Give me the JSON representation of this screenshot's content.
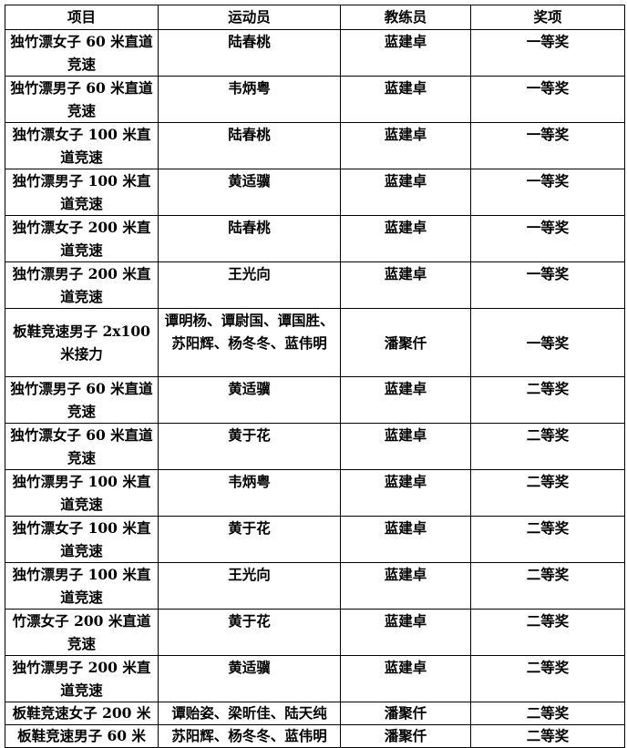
{
  "table": {
    "headers": [
      "项目",
      "运动员",
      "教练员",
      "奖项"
    ],
    "rows": [
      {
        "project": "独竹漂女子 60 米直道竞速",
        "athletes": "陆春桃",
        "coach": "蓝建卓",
        "award": "一等奖"
      },
      {
        "project": "独竹漂男子 60 米直道竞速",
        "athletes": "韦炳粤",
        "coach": "蓝建卓",
        "award": "一等奖"
      },
      {
        "project": "独竹漂女子 100 米直道竞速",
        "athletes": "陆春桃",
        "coach": "蓝建卓",
        "award": "一等奖"
      },
      {
        "project": "独竹漂男子 100 米直道竞速",
        "athletes": "黄适骥",
        "coach": "蓝建卓",
        "award": "一等奖"
      },
      {
        "project": "独竹漂女子 200 米直道竞速",
        "athletes": "陆春桃",
        "coach": "蓝建卓",
        "award": "一等奖"
      },
      {
        "project": "独竹漂男子 200 米直道竞速",
        "athletes": "王光向",
        "coach": "蓝建卓",
        "award": "一等奖"
      },
      {
        "project": "板鞋竞速男子 2x100 米接力",
        "athletes": "谭明杨、谭尉国、谭国胜、苏阳辉、杨冬冬、蓝伟明",
        "coach": "潘聚仟",
        "award": "一等奖"
      },
      {
        "project": "独竹漂男子 60 米直道竞速",
        "athletes": "黄适骥",
        "coach": "蓝建卓",
        "award": "二等奖"
      },
      {
        "project": "独竹漂女子 60 米直道竞速",
        "athletes": "黄于花",
        "coach": "蓝建卓",
        "award": "二等奖"
      },
      {
        "project": "独竹漂男子 100 米直道竞速",
        "athletes": "韦炳粤",
        "coach": "蓝建卓",
        "award": "二等奖"
      },
      {
        "project": "独竹漂女子 100 米直道竞速",
        "athletes": "黄于花",
        "coach": "蓝建卓",
        "award": "二等奖"
      },
      {
        "project": "独竹漂男子 100 米直道竞速",
        "athletes": "王光向",
        "coach": "蓝建卓",
        "award": "二等奖"
      },
      {
        "project": "竹漂女子 200 米直道竞速",
        "athletes": "黄于花",
        "coach": "蓝建卓",
        "award": "二等奖"
      },
      {
        "project": "独竹漂男子 200 米直道竞速",
        "athletes": "黄适骥",
        "coach": "蓝建卓",
        "award": "二等奖"
      },
      {
        "project": "板鞋竞速女子 200 米",
        "athletes": "谭贻姿、梁昕佳、陆天纯",
        "coach": "潘聚仟",
        "award": "二等奖"
      },
      {
        "project": "板鞋竞速男子 60 米",
        "athletes": "苏阳辉、杨冬冬、蓝伟明",
        "coach": "潘聚仟",
        "award": "二等奖"
      }
    ]
  }
}
